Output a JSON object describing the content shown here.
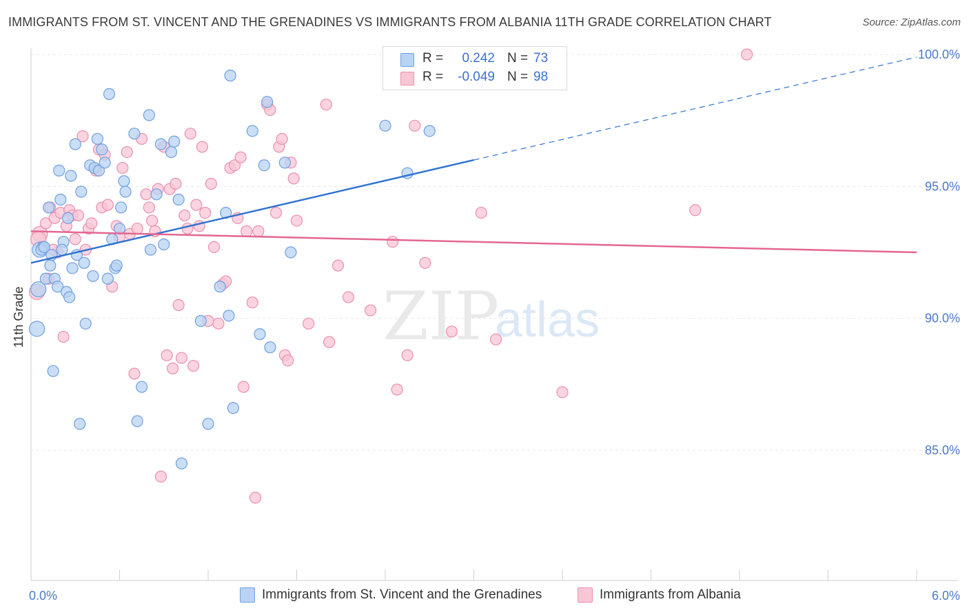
{
  "title": "IMMIGRANTS FROM ST. VINCENT AND THE GRENADINES VS IMMIGRANTS FROM ALBANIA 11TH GRADE CORRELATION CHART",
  "source": "Source: ZipAtlas.com",
  "watermark": {
    "zip": "ZIP",
    "atlas": "atlas"
  },
  "colors": {
    "blue_fill": "#b8d3f3",
    "blue_stroke": "#6f9fe0",
    "blue_line": "#2f72d0",
    "pink_fill": "#f9c6d6",
    "pink_stroke": "#ea8fae",
    "pink_line": "#e36690",
    "axis_text": "#4a7ac8",
    "grid": "#e6e6e6"
  },
  "legend": {
    "rows": [
      {
        "r_label": "R =",
        "r_value": "0.242",
        "n_label": "N =",
        "n_value": "73"
      },
      {
        "r_label": "R =",
        "r_value": "-0.049",
        "n_label": "N =",
        "n_value": "98"
      }
    ]
  },
  "bottom_legend": {
    "blue": "Immigrants from St. Vincent and the Grenadines",
    "pink": "Immigrants from Albania"
  },
  "chart_data": {
    "type": "scatter",
    "title": "IMMIGRANTS FROM ST. VINCENT AND THE GRENADINES VS IMMIGRANTS FROM ALBANIA 11TH GRADE CORRELATION CHART",
    "xlabel": "",
    "ylabel": "11th Grade",
    "xlim": [
      0,
      6
    ],
    "ylim": [
      80,
      100.5
    ],
    "x_tick_labels": [
      "0.0%",
      "6.0%"
    ],
    "y_ticks": [
      85,
      90,
      95,
      100
    ],
    "y_tick_labels": [
      "85.0%",
      "90.0%",
      "95.0%",
      "100.0%"
    ],
    "grid": true,
    "legend_position": "top-center",
    "series": [
      {
        "name": "Immigrants from St. Vincent and the Grenadines",
        "color": "blue",
        "r": 0.242,
        "n": 73,
        "trend": {
          "x0": 0.0,
          "y0": 92.1,
          "x1": 3.0,
          "y1": 96.0,
          "dashed_to_x": 6.0,
          "dashed_to_y": 99.9
        },
        "points": [
          [
            0.04,
            89.6
          ],
          [
            0.05,
            91.1
          ],
          [
            0.06,
            92.6
          ],
          [
            0.08,
            92.7
          ],
          [
            0.1,
            91.5
          ],
          [
            0.12,
            94.2
          ],
          [
            0.13,
            92.0
          ],
          [
            0.15,
            88.0
          ],
          [
            0.16,
            91.5
          ],
          [
            0.18,
            91.2
          ],
          [
            0.19,
            95.6
          ],
          [
            0.2,
            94.5
          ],
          [
            0.22,
            92.9
          ],
          [
            0.24,
            91.0
          ],
          [
            0.25,
            93.8
          ],
          [
            0.26,
            90.8
          ],
          [
            0.27,
            95.4
          ],
          [
            0.28,
            91.9
          ],
          [
            0.3,
            96.6
          ],
          [
            0.31,
            92.4
          ],
          [
            0.33,
            86.0
          ],
          [
            0.34,
            94.8
          ],
          [
            0.36,
            92.1
          ],
          [
            0.37,
            89.8
          ],
          [
            0.4,
            95.8
          ],
          [
            0.42,
            91.6
          ],
          [
            0.43,
            95.7
          ],
          [
            0.45,
            96.8
          ],
          [
            0.46,
            95.6
          ],
          [
            0.48,
            96.4
          ],
          [
            0.5,
            95.9
          ],
          [
            0.52,
            91.5
          ],
          [
            0.53,
            98.5
          ],
          [
            0.55,
            93.0
          ],
          [
            0.57,
            91.9
          ],
          [
            0.58,
            92.0
          ],
          [
            0.6,
            93.4
          ],
          [
            0.61,
            94.2
          ],
          [
            0.63,
            95.2
          ],
          [
            0.64,
            94.8
          ],
          [
            0.7,
            97.0
          ],
          [
            0.72,
            86.1
          ],
          [
            0.75,
            87.4
          ],
          [
            0.8,
            97.7
          ],
          [
            0.81,
            92.6
          ],
          [
            0.85,
            94.7
          ],
          [
            0.88,
            96.6
          ],
          [
            0.9,
            92.8
          ],
          [
            0.95,
            96.3
          ],
          [
            0.97,
            96.7
          ],
          [
            1.0,
            94.5
          ],
          [
            1.02,
            84.5
          ],
          [
            1.15,
            89.9
          ],
          [
            1.2,
            86.0
          ],
          [
            1.28,
            91.2
          ],
          [
            1.32,
            94.0
          ],
          [
            1.34,
            90.1
          ],
          [
            1.35,
            99.2
          ],
          [
            1.37,
            86.6
          ],
          [
            1.5,
            97.1
          ],
          [
            1.55,
            89.4
          ],
          [
            1.58,
            95.8
          ],
          [
            1.6,
            98.2
          ],
          [
            1.62,
            88.9
          ],
          [
            1.72,
            95.9
          ],
          [
            1.76,
            92.5
          ],
          [
            2.4,
            97.3
          ],
          [
            2.55,
            95.5
          ],
          [
            2.7,
            97.1
          ],
          [
            0.07,
            92.6
          ],
          [
            0.09,
            92.7
          ],
          [
            0.14,
            92.4
          ],
          [
            0.21,
            92.6
          ]
        ]
      },
      {
        "name": "Immigrants from Albania",
        "color": "pink",
        "r": -0.049,
        "n": 98,
        "trend": {
          "x0": 0.0,
          "y0": 93.3,
          "x1": 6.0,
          "y1": 92.5
        },
        "points": [
          [
            0.04,
            91.0
          ],
          [
            0.06,
            93.2
          ],
          [
            0.08,
            92.7
          ],
          [
            0.1,
            93.6
          ],
          [
            0.12,
            91.5
          ],
          [
            0.13,
            94.2
          ],
          [
            0.16,
            93.8
          ],
          [
            0.18,
            92.5
          ],
          [
            0.2,
            94.0
          ],
          [
            0.22,
            89.3
          ],
          [
            0.24,
            93.5
          ],
          [
            0.26,
            94.1
          ],
          [
            0.28,
            93.9
          ],
          [
            0.3,
            93.0
          ],
          [
            0.32,
            93.9
          ],
          [
            0.35,
            96.9
          ],
          [
            0.37,
            92.6
          ],
          [
            0.39,
            93.4
          ],
          [
            0.41,
            93.6
          ],
          [
            0.44,
            95.6
          ],
          [
            0.46,
            96.4
          ],
          [
            0.48,
            94.2
          ],
          [
            0.5,
            96.2
          ],
          [
            0.52,
            94.3
          ],
          [
            0.55,
            91.2
          ],
          [
            0.58,
            93.5
          ],
          [
            0.6,
            93.1
          ],
          [
            0.62,
            95.7
          ],
          [
            0.65,
            96.3
          ],
          [
            0.67,
            93.2
          ],
          [
            0.7,
            87.9
          ],
          [
            0.72,
            93.4
          ],
          [
            0.75,
            96.8
          ],
          [
            0.78,
            94.7
          ],
          [
            0.8,
            94.2
          ],
          [
            0.82,
            93.7
          ],
          [
            0.84,
            93.3
          ],
          [
            0.86,
            94.9
          ],
          [
            0.88,
            84.0
          ],
          [
            0.9,
            96.5
          ],
          [
            0.92,
            88.6
          ],
          [
            0.94,
            94.9
          ],
          [
            0.96,
            88.1
          ],
          [
            0.98,
            95.1
          ],
          [
            1.0,
            90.5
          ],
          [
            1.02,
            88.5
          ],
          [
            1.04,
            93.9
          ],
          [
            1.06,
            93.4
          ],
          [
            1.08,
            97.0
          ],
          [
            1.1,
            88.2
          ],
          [
            1.12,
            94.3
          ],
          [
            1.14,
            93.5
          ],
          [
            1.16,
            96.5
          ],
          [
            1.18,
            94.0
          ],
          [
            1.2,
            89.9
          ],
          [
            1.22,
            95.1
          ],
          [
            1.24,
            92.7
          ],
          [
            1.27,
            89.8
          ],
          [
            1.3,
            91.3
          ],
          [
            1.32,
            91.4
          ],
          [
            1.35,
            95.7
          ],
          [
            1.38,
            95.8
          ],
          [
            1.4,
            93.8
          ],
          [
            1.42,
            96.1
          ],
          [
            1.44,
            87.4
          ],
          [
            1.46,
            93.3
          ],
          [
            1.5,
            90.6
          ],
          [
            1.52,
            83.2
          ],
          [
            1.54,
            93.3
          ],
          [
            1.6,
            98.1
          ],
          [
            1.62,
            97.9
          ],
          [
            1.66,
            94.0
          ],
          [
            1.68,
            96.5
          ],
          [
            1.7,
            96.8
          ],
          [
            1.72,
            88.6
          ],
          [
            1.74,
            88.4
          ],
          [
            1.76,
            95.9
          ],
          [
            1.78,
            95.3
          ],
          [
            1.8,
            93.7
          ],
          [
            1.88,
            89.8
          ],
          [
            2.0,
            98.1
          ],
          [
            2.02,
            89.1
          ],
          [
            2.08,
            92.0
          ],
          [
            2.15,
            90.8
          ],
          [
            2.3,
            90.3
          ],
          [
            2.45,
            92.9
          ],
          [
            2.48,
            87.3
          ],
          [
            2.55,
            88.6
          ],
          [
            2.6,
            97.3
          ],
          [
            2.67,
            92.1
          ],
          [
            2.85,
            89.5
          ],
          [
            3.05,
            94.0
          ],
          [
            3.15,
            89.2
          ],
          [
            3.6,
            87.2
          ],
          [
            4.5,
            94.1
          ],
          [
            4.85,
            100.0
          ],
          [
            0.05,
            93.0
          ],
          [
            0.15,
            92.6
          ]
        ]
      }
    ]
  }
}
